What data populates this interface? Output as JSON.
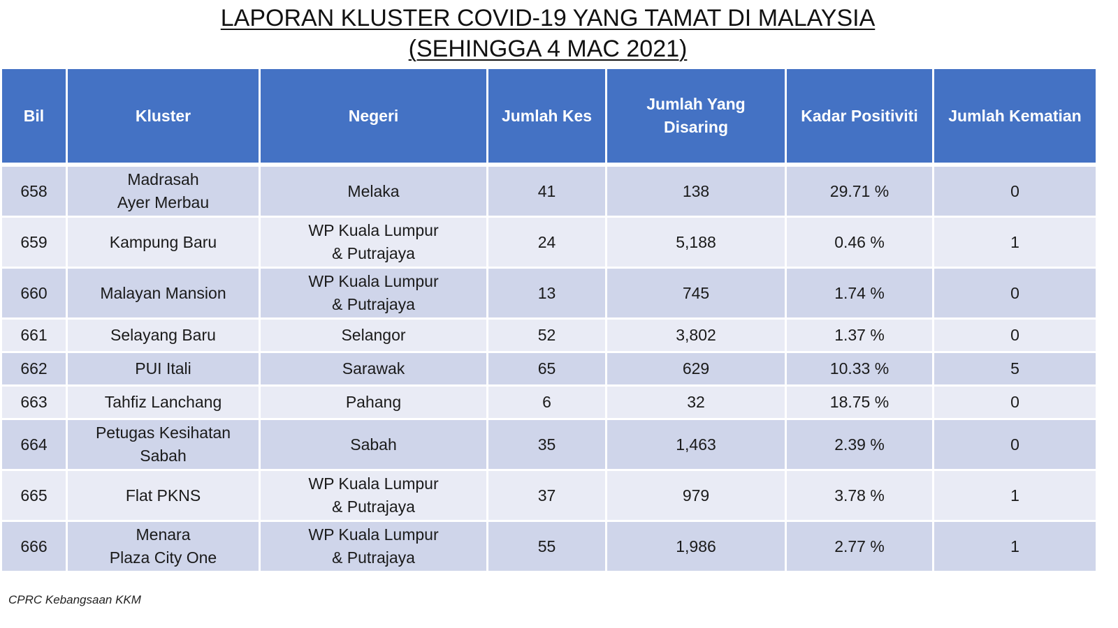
{
  "title": {
    "line1": "LAPORAN KLUSTER COVID-19 YANG TAMAT DI MALAYSIA",
    "line2": "(SEHINGGA 4 MAC 2021)"
  },
  "table": {
    "headers": {
      "bil": "Bil",
      "kluster": "Kluster",
      "negeri": "Negeri",
      "jumlah_kes": "Jumlah Kes",
      "jumlah_disaring_1": "Jumlah Yang",
      "jumlah_disaring_2": "Disaring",
      "kadar_positiviti": "Kadar Positiviti",
      "jumlah_kematian": "Jumlah Kematian"
    },
    "rows": [
      {
        "bil": "658",
        "kluster": [
          "Madrasah",
          "Ayer Merbau"
        ],
        "negeri": [
          "Melaka"
        ],
        "kes": "41",
        "disaring": "138",
        "positiviti": "29.71 %",
        "kematian": "0"
      },
      {
        "bil": "659",
        "kluster": [
          "Kampung Baru"
        ],
        "negeri": [
          "WP Kuala Lumpur",
          "& Putrajaya"
        ],
        "kes": "24",
        "disaring": "5,188",
        "positiviti": "0.46 %",
        "kematian": "1"
      },
      {
        "bil": "660",
        "kluster": [
          "Malayan Mansion"
        ],
        "negeri": [
          "WP Kuala Lumpur",
          "& Putrajaya"
        ],
        "kes": "13",
        "disaring": "745",
        "positiviti": "1.74 %",
        "kematian": "0"
      },
      {
        "bil": "661",
        "kluster": [
          "Selayang Baru"
        ],
        "negeri": [
          "Selangor"
        ],
        "kes": "52",
        "disaring": "3,802",
        "positiviti": "1.37 %",
        "kematian": "0"
      },
      {
        "bil": "662",
        "kluster": [
          "PUI Itali"
        ],
        "negeri": [
          "Sarawak"
        ],
        "kes": "65",
        "disaring": "629",
        "positiviti": "10.33 %",
        "kematian": "5"
      },
      {
        "bil": "663",
        "kluster": [
          "Tahfiz Lanchang"
        ],
        "negeri": [
          "Pahang"
        ],
        "kes": "6",
        "disaring": "32",
        "positiviti": "18.75 %",
        "kematian": "0"
      },
      {
        "bil": "664",
        "kluster": [
          "Petugas Kesihatan",
          "Sabah"
        ],
        "negeri": [
          "Sabah"
        ],
        "kes": "35",
        "disaring": "1,463",
        "positiviti": "2.39 %",
        "kematian": "0"
      },
      {
        "bil": "665",
        "kluster": [
          "Flat PKNS"
        ],
        "negeri": [
          "WP Kuala Lumpur",
          "& Putrajaya"
        ],
        "kes": "37",
        "disaring": "979",
        "positiviti": "3.78 %",
        "kematian": "1"
      },
      {
        "bil": "666",
        "kluster": [
          "Menara",
          "Plaza City One"
        ],
        "negeri": [
          "WP Kuala Lumpur",
          "& Putrajaya"
        ],
        "kes": "55",
        "disaring": "1,986",
        "positiviti": "2.77 %",
        "kematian": "1"
      }
    ]
  },
  "footer": "CPRC Kebangsaan KKM",
  "colors": {
    "header_bg": "#4472c4",
    "row_odd_bg": "#cfd5ea",
    "row_even_bg": "#e9ebf5"
  }
}
